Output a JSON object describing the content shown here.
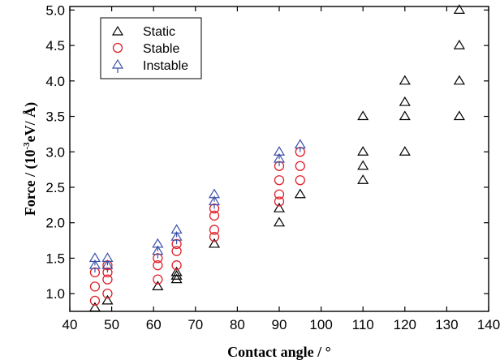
{
  "chart_data": {
    "type": "scatter",
    "title": "",
    "xlabel": "Contact angle / °",
    "ylabel_main": "Force / (10",
    "ylabel_sup": "-3",
    "ylabel_tail": "eV/ Å)",
    "xlim": [
      40,
      140
    ],
    "ylim": [
      0.75,
      5.05
    ],
    "xticks": [
      40,
      50,
      60,
      70,
      80,
      90,
      100,
      110,
      120,
      130,
      140
    ],
    "yticks": [
      "1.0",
      "1.5",
      "2.0",
      "2.5",
      "3.0",
      "3.5",
      "4.0",
      "4.5",
      "5.0"
    ],
    "legend_position": "top-left",
    "series": [
      {
        "name": "Static",
        "marker": "triangle",
        "color": "#000000",
        "points": [
          [
            46,
            0.8
          ],
          [
            49,
            0.9
          ],
          [
            61,
            1.1
          ],
          [
            65.5,
            1.2
          ],
          [
            65.5,
            1.25
          ],
          [
            65.5,
            1.3
          ],
          [
            74.5,
            1.7
          ],
          [
            90,
            2.0
          ],
          [
            90,
            2.2
          ],
          [
            95,
            2.4
          ],
          [
            110,
            2.6
          ],
          [
            110,
            2.8
          ],
          [
            110,
            3.0
          ],
          [
            110,
            3.5
          ],
          [
            120,
            3.0
          ],
          [
            120,
            3.5
          ],
          [
            120,
            3.7
          ],
          [
            120,
            4.0
          ],
          [
            133,
            3.5
          ],
          [
            133,
            4.0
          ],
          [
            133,
            4.5
          ],
          [
            133,
            5.0
          ]
        ]
      },
      {
        "name": "Stable",
        "marker": "circle",
        "color": "#e0202a",
        "points": [
          [
            46,
            0.9
          ],
          [
            46,
            1.1
          ],
          [
            46,
            1.3
          ],
          [
            49,
            1.0
          ],
          [
            49,
            1.2
          ],
          [
            49,
            1.3
          ],
          [
            49,
            1.4
          ],
          [
            61,
            1.2
          ],
          [
            61,
            1.4
          ],
          [
            61,
            1.5
          ],
          [
            65.5,
            1.4
          ],
          [
            65.5,
            1.6
          ],
          [
            65.5,
            1.7
          ],
          [
            74.5,
            1.8
          ],
          [
            74.5,
            1.9
          ],
          [
            74.5,
            2.1
          ],
          [
            74.5,
            2.2
          ],
          [
            90,
            2.3
          ],
          [
            90,
            2.4
          ],
          [
            90,
            2.6
          ],
          [
            90,
            2.8
          ],
          [
            95,
            2.6
          ],
          [
            95,
            2.8
          ],
          [
            95,
            3.0
          ]
        ]
      },
      {
        "name": "Instable",
        "marker": "triangle-stem",
        "color": "#3b4fa8",
        "points": [
          [
            46,
            1.4
          ],
          [
            46,
            1.5
          ],
          [
            49,
            1.4
          ],
          [
            49,
            1.5
          ],
          [
            61,
            1.6
          ],
          [
            61,
            1.7
          ],
          [
            65.5,
            1.8
          ],
          [
            65.5,
            1.9
          ],
          [
            74.5,
            2.3
          ],
          [
            74.5,
            2.4
          ],
          [
            90,
            2.9
          ],
          [
            90,
            3.0
          ],
          [
            95,
            3.1
          ]
        ]
      }
    ]
  }
}
